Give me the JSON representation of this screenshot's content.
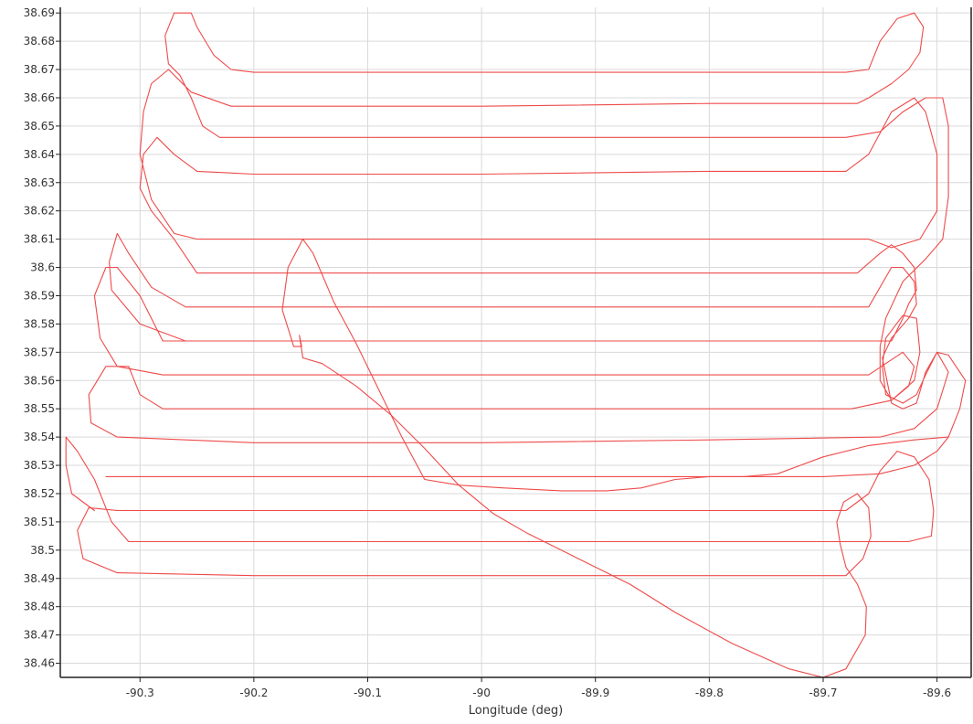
{
  "chart_data": {
    "type": "line",
    "title": "",
    "xlabel": "Longitude (deg)",
    "ylabel": "",
    "xlim": [
      -90.37,
      -89.57
    ],
    "ylim": [
      38.455,
      38.692
    ],
    "x_ticks": [
      -90.3,
      -90.2,
      -90.1,
      -90.0,
      -89.9,
      -89.8,
      -89.7,
      -89.6
    ],
    "x_tick_labels": [
      "-90.3",
      "-90.2",
      "-90.1",
      "-90",
      "-89.9",
      "-89.8",
      "-89.7",
      "-89.6"
    ],
    "y_ticks": [
      38.46,
      38.47,
      38.48,
      38.49,
      38.5,
      38.51,
      38.52,
      38.53,
      38.54,
      38.55,
      38.56,
      38.57,
      38.58,
      38.59,
      38.6,
      38.61,
      38.62,
      38.63,
      38.64,
      38.65,
      38.66,
      38.67,
      38.68,
      38.69
    ],
    "y_tick_labels": [
      "38.46",
      "38.47",
      "38.48",
      "38.49",
      "38.5",
      "38.51",
      "38.52",
      "38.53",
      "38.54",
      "38.55",
      "38.56",
      "38.57",
      "38.58",
      "38.59",
      "38.6",
      "38.61",
      "38.62",
      "38.63",
      "38.64",
      "38.65",
      "38.66",
      "38.67",
      "38.68",
      "38.69"
    ],
    "grid": true,
    "legend": "none",
    "series": [
      {
        "color": "#ef4a4a",
        "points": [
          [
            -90.157,
            38.568
          ],
          [
            -90.16,
            38.576
          ],
          [
            -90.158,
            38.572
          ],
          [
            -90.165,
            38.572
          ],
          [
            -90.175,
            38.585
          ],
          [
            -90.17,
            38.6
          ],
          [
            -90.157,
            38.61
          ],
          [
            -90.148,
            38.605
          ],
          [
            -90.13,
            38.588
          ],
          [
            -90.11,
            38.573
          ],
          [
            -90.07,
            38.54
          ],
          [
            -90.05,
            38.525
          ],
          [
            -90.02,
            38.523
          ],
          [
            -89.98,
            38.522
          ],
          [
            -89.93,
            38.521
          ],
          [
            -89.89,
            38.521
          ],
          [
            -89.86,
            38.522
          ],
          [
            -89.83,
            38.525
          ],
          [
            -89.8,
            38.526
          ],
          [
            -89.77,
            38.526
          ],
          [
            -89.74,
            38.527
          ],
          [
            -89.7,
            38.533
          ],
          [
            -89.66,
            38.537
          ],
          [
            -89.62,
            38.539
          ],
          [
            -89.59,
            38.54
          ],
          [
            -89.58,
            38.55
          ],
          [
            -89.575,
            38.56
          ],
          [
            -89.59,
            38.569
          ],
          [
            -89.6,
            38.57
          ],
          [
            -89.61,
            38.562
          ],
          [
            -89.618,
            38.555
          ],
          [
            -89.63,
            38.552
          ],
          [
            -89.645,
            38.555
          ],
          [
            -89.648,
            38.565
          ],
          [
            -89.645,
            38.575
          ],
          [
            -89.63,
            38.583
          ],
          [
            -89.618,
            38.582
          ],
          [
            -89.615,
            38.57
          ],
          [
            -89.62,
            38.56
          ],
          [
            -89.64,
            38.553
          ],
          [
            -89.675,
            38.55
          ],
          [
            -89.8,
            38.55
          ],
          [
            -89.95,
            38.55
          ],
          [
            -90.1,
            38.55
          ],
          [
            -90.28,
            38.55
          ],
          [
            -90.3,
            38.555
          ],
          [
            -90.31,
            38.565
          ],
          [
            -90.33,
            38.565
          ],
          [
            -90.345,
            38.555
          ],
          [
            -90.343,
            38.545
          ],
          [
            -90.32,
            38.54
          ],
          [
            -90.2,
            38.538
          ],
          [
            -90.0,
            38.538
          ],
          [
            -89.8,
            38.539
          ],
          [
            -89.65,
            38.54
          ],
          [
            -89.62,
            38.543
          ],
          [
            -89.6,
            38.55
          ],
          [
            -89.59,
            38.563
          ],
          [
            -89.6,
            38.57
          ],
          [
            -89.61,
            38.563
          ],
          [
            -89.618,
            38.552
          ],
          [
            -89.63,
            38.55
          ],
          [
            -89.64,
            38.552
          ],
          [
            -89.648,
            38.568
          ],
          [
            -89.64,
            38.575
          ],
          [
            -89.625,
            38.582
          ],
          [
            -89.618,
            38.587
          ],
          [
            -89.62,
            38.595
          ],
          [
            -89.63,
            38.6
          ],
          [
            -89.64,
            38.6
          ],
          [
            -89.66,
            38.586
          ],
          [
            -89.8,
            38.586
          ],
          [
            -90.0,
            38.586
          ],
          [
            -90.2,
            38.586
          ],
          [
            -90.26,
            38.586
          ],
          [
            -90.29,
            38.593
          ],
          [
            -90.31,
            38.605
          ],
          [
            -90.32,
            38.612
          ],
          [
            -90.327,
            38.602
          ],
          [
            -90.325,
            38.592
          ],
          [
            -90.3,
            38.58
          ],
          [
            -90.26,
            38.574
          ],
          [
            -90.1,
            38.574
          ],
          [
            -89.9,
            38.574
          ],
          [
            -89.7,
            38.574
          ],
          [
            -89.64,
            38.574
          ],
          [
            -89.63,
            38.582
          ],
          [
            -89.625,
            38.587
          ],
          [
            -89.618,
            38.592
          ],
          [
            -89.62,
            38.6
          ],
          [
            -89.63,
            38.605
          ],
          [
            -89.64,
            38.608
          ],
          [
            -89.65,
            38.605
          ],
          [
            -89.67,
            38.598
          ],
          [
            -89.8,
            38.598
          ],
          [
            -90.0,
            38.598
          ],
          [
            -90.2,
            38.598
          ],
          [
            -90.25,
            38.598
          ],
          [
            -90.27,
            38.61
          ],
          [
            -90.29,
            38.62
          ],
          [
            -90.3,
            38.628
          ],
          [
            -90.297,
            38.64
          ],
          [
            -90.285,
            38.646
          ],
          [
            -90.27,
            38.64
          ],
          [
            -90.25,
            38.634
          ],
          [
            -90.2,
            38.633
          ],
          [
            -90.0,
            38.633
          ],
          [
            -89.8,
            38.634
          ],
          [
            -89.68,
            38.634
          ],
          [
            -89.66,
            38.64
          ],
          [
            -89.64,
            38.655
          ],
          [
            -89.62,
            38.66
          ],
          [
            -89.61,
            38.655
          ],
          [
            -89.6,
            38.64
          ],
          [
            -89.6,
            38.62
          ],
          [
            -89.615,
            38.61
          ],
          [
            -89.64,
            38.607
          ],
          [
            -89.66,
            38.61
          ],
          [
            -89.8,
            38.61
          ],
          [
            -90.0,
            38.61
          ],
          [
            -90.2,
            38.61
          ],
          [
            -90.25,
            38.61
          ],
          [
            -90.27,
            38.612
          ],
          [
            -90.29,
            38.624
          ],
          [
            -90.3,
            38.64
          ],
          [
            -90.297,
            38.655
          ],
          [
            -90.29,
            38.665
          ],
          [
            -90.275,
            38.67
          ],
          [
            -90.255,
            38.662
          ],
          [
            -90.22,
            38.657
          ],
          [
            -90.0,
            38.657
          ],
          [
            -89.8,
            38.658
          ],
          [
            -89.67,
            38.658
          ],
          [
            -89.66,
            38.66
          ],
          [
            -89.64,
            38.665
          ],
          [
            -89.625,
            38.67
          ],
          [
            -89.615,
            38.676
          ],
          [
            -89.612,
            38.685
          ],
          [
            -89.62,
            38.69
          ],
          [
            -89.635,
            38.688
          ],
          [
            -89.65,
            38.68
          ],
          [
            -89.66,
            38.67
          ],
          [
            -89.68,
            38.669
          ],
          [
            -89.8,
            38.669
          ],
          [
            -90.0,
            38.669
          ],
          [
            -90.2,
            38.669
          ],
          [
            -90.22,
            38.67
          ],
          [
            -90.235,
            38.675
          ],
          [
            -90.25,
            38.685
          ],
          [
            -90.255,
            38.69
          ],
          [
            -90.27,
            38.69
          ],
          [
            -90.278,
            38.682
          ],
          [
            -90.275,
            38.672
          ],
          [
            -90.265,
            38.668
          ],
          [
            -90.255,
            38.66
          ],
          [
            -90.245,
            38.65
          ],
          [
            -90.23,
            38.646
          ],
          [
            -90.2,
            38.646
          ],
          [
            -90.0,
            38.646
          ],
          [
            -89.8,
            38.646
          ],
          [
            -89.68,
            38.646
          ],
          [
            -89.65,
            38.648
          ],
          [
            -89.63,
            38.655
          ],
          [
            -89.61,
            38.66
          ],
          [
            -89.595,
            38.66
          ],
          [
            -89.59,
            38.65
          ],
          [
            -89.59,
            38.625
          ],
          [
            -89.595,
            38.61
          ],
          [
            -89.61,
            38.603
          ],
          [
            -89.63,
            38.595
          ],
          [
            -89.645,
            38.582
          ],
          [
            -89.65,
            38.572
          ],
          [
            -89.65,
            38.56
          ],
          [
            -89.64,
            38.553
          ],
          [
            -89.625,
            38.558
          ],
          [
            -89.62,
            38.565
          ],
          [
            -89.63,
            38.57
          ],
          [
            -89.66,
            38.562
          ],
          [
            -89.8,
            38.562
          ],
          [
            -90.0,
            38.562
          ],
          [
            -90.2,
            38.562
          ],
          [
            -90.28,
            38.562
          ],
          [
            -90.32,
            38.565
          ],
          [
            -90.335,
            38.575
          ],
          [
            -90.34,
            38.59
          ],
          [
            -90.33,
            38.6
          ],
          [
            -90.32,
            38.6
          ],
          [
            -90.3,
            38.59
          ],
          [
            -90.28,
            38.574
          ],
          [
            -90.26,
            38.574
          ]
        ]
      },
      {
        "color": "#ef4a4a",
        "points": [
          [
            -89.7,
            38.455
          ],
          [
            -89.73,
            38.458
          ],
          [
            -89.78,
            38.467
          ],
          [
            -89.83,
            38.478
          ],
          [
            -89.87,
            38.488
          ],
          [
            -89.9,
            38.494
          ],
          [
            -89.93,
            38.5
          ],
          [
            -89.96,
            38.506
          ],
          [
            -89.99,
            38.513
          ],
          [
            -90.02,
            38.523
          ],
          [
            -90.05,
            38.536
          ],
          [
            -90.08,
            38.548
          ],
          [
            -90.11,
            38.558
          ],
          [
            -90.14,
            38.566
          ],
          [
            -90.157,
            38.568
          ]
        ]
      },
      {
        "color": "#ef4a4a",
        "points": [
          [
            -89.7,
            38.455
          ],
          [
            -89.68,
            38.458
          ],
          [
            -89.663,
            38.47
          ],
          [
            -89.662,
            38.48
          ],
          [
            -89.67,
            38.488
          ],
          [
            -89.68,
            38.494
          ],
          [
            -89.685,
            38.502
          ],
          [
            -89.688,
            38.51
          ],
          [
            -89.682,
            38.517
          ],
          [
            -89.67,
            38.52
          ],
          [
            -89.66,
            38.515
          ],
          [
            -89.658,
            38.505
          ],
          [
            -89.665,
            38.497
          ],
          [
            -89.68,
            38.491
          ],
          [
            -89.8,
            38.491
          ],
          [
            -90.0,
            38.491
          ],
          [
            -90.2,
            38.491
          ],
          [
            -90.32,
            38.492
          ],
          [
            -90.35,
            38.497
          ],
          [
            -90.355,
            38.507
          ],
          [
            -90.345,
            38.515
          ],
          [
            -90.32,
            38.514
          ],
          [
            -90.2,
            38.514
          ],
          [
            -90.0,
            38.514
          ],
          [
            -89.8,
            38.514
          ],
          [
            -89.68,
            38.514
          ],
          [
            -89.66,
            38.52
          ],
          [
            -89.65,
            38.528
          ],
          [
            -89.635,
            38.535
          ],
          [
            -89.62,
            38.533
          ],
          [
            -89.607,
            38.525
          ],
          [
            -89.603,
            38.514
          ],
          [
            -89.605,
            38.505
          ],
          [
            -89.625,
            38.503
          ],
          [
            -89.66,
            38.503
          ],
          [
            -89.8,
            38.503
          ],
          [
            -90.0,
            38.503
          ],
          [
            -90.2,
            38.503
          ],
          [
            -90.31,
            38.503
          ],
          [
            -90.325,
            38.51
          ],
          [
            -90.34,
            38.525
          ],
          [
            -90.355,
            38.535
          ],
          [
            -90.365,
            38.54
          ],
          [
            -90.365,
            38.53
          ],
          [
            -90.36,
            38.52
          ],
          [
            -90.34,
            38.514
          ]
        ]
      },
      {
        "color": "#ef4a4a",
        "points": [
          [
            -90.33,
            38.526
          ],
          [
            -90.3,
            38.526
          ],
          [
            -90.1,
            38.526
          ],
          [
            -89.9,
            38.526
          ],
          [
            -89.7,
            38.526
          ],
          [
            -89.65,
            38.527
          ],
          [
            -89.62,
            38.53
          ],
          [
            -89.6,
            38.535
          ],
          [
            -89.59,
            38.54
          ]
        ]
      }
    ]
  }
}
